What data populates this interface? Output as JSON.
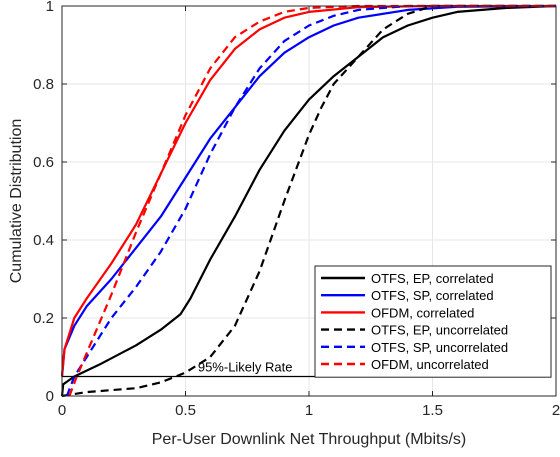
{
  "chart_data": {
    "type": "line",
    "title": "",
    "xlabel": "Per-User Downlink Net Throughput (Mbits/s)",
    "ylabel": "Cumulative Distribution",
    "xlim": [
      0,
      2
    ],
    "ylim": [
      0,
      1
    ],
    "xticks": [
      "0",
      "0.5",
      "1",
      "1.5",
      "2"
    ],
    "yticks": [
      "0",
      "0.2",
      "0.4",
      "0.6",
      "0.8",
      "1"
    ],
    "grid": true,
    "legend_position": "bottom-right",
    "annotation": {
      "text": "95%-Likely Rate",
      "y": 0.05,
      "x_start": 0,
      "x_end": 1.05
    },
    "series": [
      {
        "name": "OTFS, EP, correlated",
        "color": "#000000",
        "style": "solid",
        "points": [
          [
            0,
            0
          ],
          [
            0.005,
            0.03
          ],
          [
            0.05,
            0.05
          ],
          [
            0.15,
            0.08
          ],
          [
            0.3,
            0.13
          ],
          [
            0.4,
            0.17
          ],
          [
            0.48,
            0.21
          ],
          [
            0.52,
            0.25
          ],
          [
            0.6,
            0.35
          ],
          [
            0.7,
            0.46
          ],
          [
            0.8,
            0.58
          ],
          [
            0.9,
            0.68
          ],
          [
            1.0,
            0.76
          ],
          [
            1.1,
            0.82
          ],
          [
            1.2,
            0.87
          ],
          [
            1.3,
            0.92
          ],
          [
            1.4,
            0.95
          ],
          [
            1.5,
            0.97
          ],
          [
            1.6,
            0.985
          ],
          [
            1.8,
            0.995
          ],
          [
            2.0,
            1.0
          ]
        ]
      },
      {
        "name": "OTFS, SP, correlated",
        "color": "#0000ff",
        "style": "solid",
        "points": [
          [
            0,
            0.05
          ],
          [
            0.01,
            0.12
          ],
          [
            0.05,
            0.18
          ],
          [
            0.1,
            0.23
          ],
          [
            0.2,
            0.3
          ],
          [
            0.3,
            0.38
          ],
          [
            0.4,
            0.46
          ],
          [
            0.5,
            0.56
          ],
          [
            0.6,
            0.66
          ],
          [
            0.7,
            0.74
          ],
          [
            0.8,
            0.82
          ],
          [
            0.9,
            0.88
          ],
          [
            1.0,
            0.92
          ],
          [
            1.1,
            0.95
          ],
          [
            1.2,
            0.97
          ],
          [
            1.4,
            0.99
          ],
          [
            1.6,
            0.998
          ],
          [
            2.0,
            1.0
          ]
        ]
      },
      {
        "name": "OFDM, correlated",
        "color": "#ff0000",
        "style": "solid",
        "points": [
          [
            0,
            0.05
          ],
          [
            0.01,
            0.12
          ],
          [
            0.05,
            0.2
          ],
          [
            0.1,
            0.25
          ],
          [
            0.2,
            0.34
          ],
          [
            0.3,
            0.44
          ],
          [
            0.4,
            0.57
          ],
          [
            0.5,
            0.7
          ],
          [
            0.6,
            0.81
          ],
          [
            0.7,
            0.89
          ],
          [
            0.8,
            0.94
          ],
          [
            0.9,
            0.97
          ],
          [
            1.0,
            0.985
          ],
          [
            1.2,
            0.997
          ],
          [
            1.5,
            1.0
          ],
          [
            2.0,
            1.0
          ]
        ]
      },
      {
        "name": "OTFS, EP, uncorrelated",
        "color": "#000000",
        "style": "dashed",
        "points": [
          [
            0,
            0
          ],
          [
            0.1,
            0.01
          ],
          [
            0.2,
            0.015
          ],
          [
            0.3,
            0.02
          ],
          [
            0.4,
            0.035
          ],
          [
            0.5,
            0.06
          ],
          [
            0.6,
            0.1
          ],
          [
            0.7,
            0.18
          ],
          [
            0.8,
            0.32
          ],
          [
            0.9,
            0.5
          ],
          [
            1.0,
            0.67
          ],
          [
            1.05,
            0.74
          ],
          [
            1.1,
            0.8
          ],
          [
            1.2,
            0.87
          ],
          [
            1.3,
            0.94
          ],
          [
            1.4,
            0.98
          ],
          [
            1.5,
            1.0
          ],
          [
            2.0,
            1.0
          ]
        ]
      },
      {
        "name": "OTFS, SP, uncorrelated",
        "color": "#0000ff",
        "style": "dashed",
        "points": [
          [
            0.02,
            0
          ],
          [
            0.05,
            0.05
          ],
          [
            0.1,
            0.1
          ],
          [
            0.2,
            0.2
          ],
          [
            0.3,
            0.28
          ],
          [
            0.4,
            0.37
          ],
          [
            0.5,
            0.48
          ],
          [
            0.6,
            0.62
          ],
          [
            0.7,
            0.74
          ],
          [
            0.8,
            0.84
          ],
          [
            0.9,
            0.91
          ],
          [
            1.0,
            0.95
          ],
          [
            1.1,
            0.975
          ],
          [
            1.2,
            0.99
          ],
          [
            1.4,
            1.0
          ],
          [
            2.0,
            1.0
          ]
        ]
      },
      {
        "name": "OFDM, uncorrelated",
        "color": "#ff0000",
        "style": "dashed",
        "points": [
          [
            0.03,
            0
          ],
          [
            0.06,
            0.05
          ],
          [
            0.1,
            0.11
          ],
          [
            0.2,
            0.26
          ],
          [
            0.3,
            0.42
          ],
          [
            0.4,
            0.57
          ],
          [
            0.5,
            0.72
          ],
          [
            0.6,
            0.84
          ],
          [
            0.7,
            0.92
          ],
          [
            0.8,
            0.96
          ],
          [
            0.9,
            0.985
          ],
          [
            1.0,
            0.995
          ],
          [
            1.2,
            1.0
          ],
          [
            2.0,
            1.0
          ]
        ]
      }
    ]
  }
}
